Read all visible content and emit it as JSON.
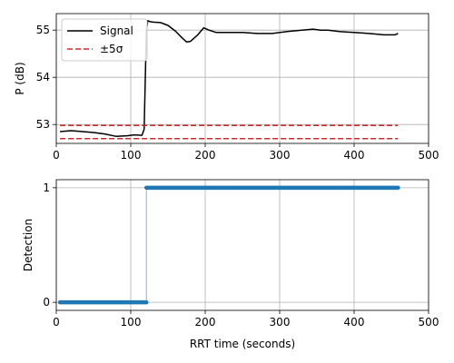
{
  "chart_data": [
    {
      "type": "line",
      "ylabel": "P (dB)",
      "xlim": [
        0,
        500
      ],
      "ylim": [
        52.6,
        55.35
      ],
      "xticks": [
        0,
        100,
        200,
        300,
        400,
        500
      ],
      "yticks": [
        53,
        54,
        55
      ],
      "grid": true,
      "legend": {
        "position": "top-left",
        "entries": [
          "Signal",
          "±5σ"
        ]
      },
      "series": [
        {
          "name": "Signal",
          "color": "#000000",
          "style": "solid",
          "x": [
            5,
            20,
            35,
            50,
            65,
            80,
            95,
            105,
            115,
            118,
            121,
            123,
            126,
            130,
            140,
            150,
            160,
            170,
            175,
            180,
            190,
            198,
            205,
            215,
            230,
            250,
            270,
            290,
            310,
            330,
            345,
            355,
            365,
            380,
            400,
            420,
            440,
            455,
            459
          ],
          "y": [
            52.85,
            52.87,
            52.85,
            52.83,
            52.8,
            52.75,
            52.76,
            52.78,
            52.77,
            52.9,
            55.0,
            55.2,
            55.18,
            55.17,
            55.16,
            55.1,
            54.98,
            54.82,
            54.75,
            54.76,
            54.9,
            55.05,
            55.0,
            54.95,
            54.95,
            54.95,
            54.93,
            54.93,
            54.97,
            55.0,
            55.02,
            55.0,
            55.0,
            54.97,
            54.95,
            54.93,
            54.9,
            54.9,
            54.93
          ]
        },
        {
          "name": "±5σ",
          "color": "#d62728",
          "style": "dashed",
          "bounds": [
            52.98,
            52.7
          ],
          "x": [
            5,
            459
          ]
        }
      ]
    },
    {
      "type": "line",
      "xlabel": "RRT time (seconds)",
      "ylabel": "Detection",
      "xlim": [
        0,
        500
      ],
      "ylim": [
        -0.07,
        1.07
      ],
      "xticks": [
        0,
        100,
        200,
        300,
        400,
        500
      ],
      "yticks": [
        0,
        1
      ],
      "grid": true,
      "series": [
        {
          "color": "#1f77b4",
          "markers": true,
          "x": [
            5,
            121,
            121,
            459
          ],
          "y": [
            0,
            0,
            1,
            1
          ]
        }
      ]
    }
  ]
}
